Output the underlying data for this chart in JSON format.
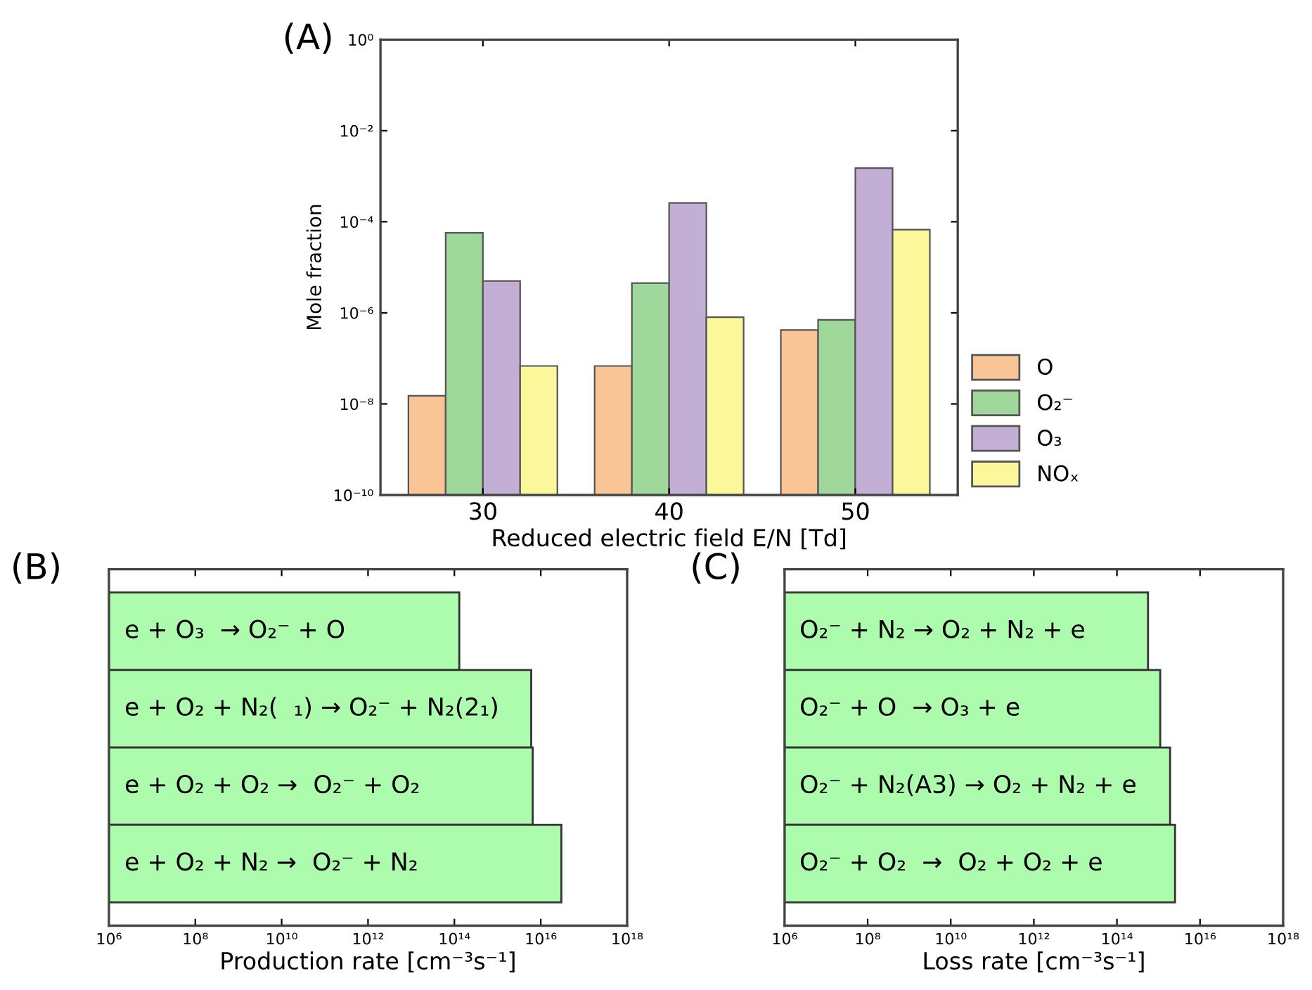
{
  "chart_data": [
    {
      "type": "bar",
      "title": "(A)",
      "xlabel": "Reduced electric field E/N [Td]",
      "ylabel": "Mole fraction",
      "categories": [
        "30",
        "40",
        "50"
      ],
      "log": "y",
      "ylim": [
        1e-10,
        1
      ],
      "yticks": [
        {
          "value": 1e-10,
          "label": "10⁻¹⁰"
        },
        {
          "value": 1e-08,
          "label": "10⁻⁸"
        },
        {
          "value": 1e-06,
          "label": "10⁻⁶"
        },
        {
          "value": 0.0001,
          "label": "10⁻⁴"
        },
        {
          "value": 0.01,
          "label": "10⁻²"
        },
        {
          "value": 1,
          "label": "10⁰"
        }
      ],
      "grid": false,
      "legend": "bottom right",
      "series": [
        {
          "name": "O",
          "color": "#f9c597",
          "values": [
            1.5e-08,
            6.8e-08,
            4.2e-07
          ]
        },
        {
          "name": "O₂⁻",
          "color": "#a0d89c",
          "values": [
            5.7e-05,
            4.5e-06,
            7e-07
          ]
        },
        {
          "name": "O₃",
          "color": "#c3afd6",
          "values": [
            5e-06,
            0.00026,
            0.0015
          ]
        },
        {
          "name": "NOₓ",
          "color": "#fbf89c",
          "values": [
            6.8e-08,
            8e-07,
            6.7e-05
          ]
        }
      ]
    },
    {
      "type": "bar",
      "orientation": "horizontal",
      "title": "(B)",
      "xlabel": "Production rate [cm⁻³s⁻¹]",
      "categories": [
        "e + O₃  → O₂⁻ + O",
        "e + O₂ + N₂(  ₁) → O₂⁻ + N₂(2₁)",
        "e + O₂ + O₂ →  O₂⁻ + O₂",
        "e + O₂ + N₂ →  O₂⁻ + N₂"
      ],
      "values": [
        130000000000000.0,
        6000000000000000.0,
        6500000000000000.0,
        3e+16
      ],
      "color": "#adfcad",
      "log": "x",
      "xlim": [
        1000000.0,
        1e+18
      ],
      "xticks": [
        {
          "value": 1000000.0,
          "label": "10⁶"
        },
        {
          "value": 100000000.0,
          "label": "10⁸"
        },
        {
          "value": 10000000000.0,
          "label": "10¹⁰"
        },
        {
          "value": 1000000000000.0,
          "label": "10¹²"
        },
        {
          "value": 100000000000000.0,
          "label": "10¹⁴"
        },
        {
          "value": 1e+16,
          "label": "10¹⁶"
        },
        {
          "value": 1e+18,
          "label": "10¹⁸"
        }
      ],
      "tick_labels": "x",
      "grid": false
    },
    {
      "type": "bar",
      "orientation": "horizontal",
      "title": "(C)",
      "xlabel": "Loss rate [cm⁻³s⁻¹]",
      "categories": [
        "O₂⁻ + N₂ → O₂ + N₂ + e",
        "O₂⁻ + O  → O₃ + e",
        "O₂⁻ + N₂(A3) → O₂ + N₂ + e",
        "O₂⁻ + O₂  →  O₂ + O₂ + e"
      ],
      "values": [
        560000000000000.0,
        1100000000000000.0,
        1900000000000000.0,
        2500000000000000.0
      ],
      "color": "#adfcad",
      "log": "x",
      "xlim": [
        1000000.0,
        1e+18
      ],
      "xticks": [
        {
          "value": 1000000.0,
          "label": "10⁶"
        },
        {
          "value": 100000000.0,
          "label": "10⁸"
        },
        {
          "value": 10000000000.0,
          "label": "10¹⁰"
        },
        {
          "value": 1000000000000.0,
          "label": "10¹²"
        },
        {
          "value": 100000000000000.0,
          "label": "10¹⁴"
        },
        {
          "value": 1e+16,
          "label": "10¹⁶"
        },
        {
          "value": 1e+18,
          "label": "10¹⁸"
        }
      ],
      "tick_labels": "x",
      "grid": false
    }
  ]
}
